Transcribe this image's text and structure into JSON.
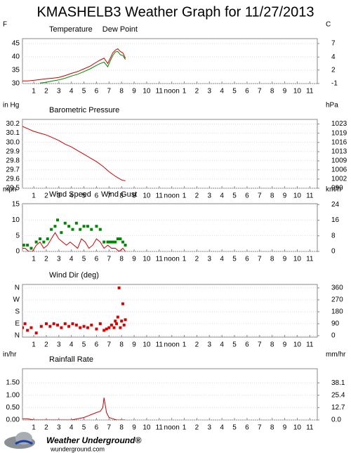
{
  "title": "KMASHELB3 Weather Graph for 11/27/2013",
  "chart_data": [
    {
      "type": "line",
      "ylabel": "F",
      "y2label": "C",
      "xlim": [
        0.1,
        23.6
      ],
      "xticks": [
        1,
        2,
        3,
        4,
        5,
        6,
        7,
        8,
        9,
        10,
        11,
        {
          "value": 12,
          "label": "noon"
        },
        {
          "value": 13,
          "label": "1"
        },
        {
          "value": 14,
          "label": "2"
        },
        {
          "value": 15,
          "label": "3"
        },
        {
          "value": 16,
          "label": "4"
        },
        {
          "value": 17,
          "label": "5"
        },
        {
          "value": 18,
          "label": "6"
        },
        {
          "value": 19,
          "label": "7"
        },
        {
          "value": 20,
          "label": "8"
        },
        {
          "value": 21,
          "label": "9"
        },
        {
          "value": 22,
          "label": "10"
        },
        {
          "value": 23,
          "label": "11"
        }
      ],
      "ylim": [
        30,
        46.8
      ],
      "yticks": [
        30,
        35,
        40,
        45
      ],
      "y2lim": [
        -1.11,
        8.22
      ],
      "y2ticks": [
        {
          "value": -1.1,
          "label": "-1"
        },
        {
          "value": 1.7,
          "label": "2"
        },
        {
          "value": 4.4,
          "label": "4"
        },
        {
          "value": 7.2,
          "label": "7"
        }
      ],
      "grid": true,
      "series": [
        {
          "name": "Temperature",
          "color": "#cc0000",
          "style": "line",
          "x": [
            0,
            0.5,
            1,
            1.5,
            2,
            2.5,
            3,
            3.5,
            4,
            4.5,
            5,
            5.5,
            6,
            6.3,
            6.6,
            6.9,
            7.1,
            7.3,
            7.5,
            7.7,
            7.9,
            8.1,
            8.3
          ],
          "values": [
            31,
            31,
            31.2,
            31.5,
            31.8,
            32,
            32.3,
            33,
            33.8,
            34.5,
            35.5,
            36.5,
            38,
            38.8,
            39.5,
            37.5,
            39.5,
            41.5,
            42.5,
            43,
            42,
            41.5,
            39.5
          ]
        },
        {
          "name": "Dew Point",
          "color": "#008800",
          "style": "line",
          "x": [
            0,
            0.5,
            1,
            1.5,
            2,
            2.5,
            3,
            3.5,
            4,
            4.5,
            5,
            5.5,
            6,
            6.3,
            6.6,
            6.9,
            7.1,
            7.3,
            7.5,
            7.7,
            7.9,
            8.1,
            8.3
          ],
          "values": [
            null,
            null,
            null,
            30.2,
            30.5,
            31,
            31.4,
            32,
            32.8,
            33.5,
            34.5,
            35.5,
            36.8,
            37.5,
            38,
            36.3,
            38.5,
            40.5,
            41.8,
            42,
            40.8,
            40.5,
            39
          ]
        }
      ]
    },
    {
      "type": "line",
      "ylabel": "in Hg",
      "y2label": "hPa",
      "xlim": [
        0.1,
        23.6
      ],
      "xticks": [
        1,
        2,
        3,
        4,
        5,
        6,
        7,
        8,
        9,
        10,
        11,
        {
          "value": 12,
          "label": "noon"
        },
        {
          "value": 13,
          "label": "1"
        },
        {
          "value": 14,
          "label": "2"
        },
        {
          "value": 15,
          "label": "3"
        },
        {
          "value": 16,
          "label": "4"
        },
        {
          "value": 17,
          "label": "5"
        },
        {
          "value": 18,
          "label": "6"
        },
        {
          "value": 19,
          "label": "7"
        },
        {
          "value": 20,
          "label": "8"
        },
        {
          "value": 21,
          "label": "9"
        },
        {
          "value": 22,
          "label": "10"
        },
        {
          "value": 23,
          "label": "11"
        }
      ],
      "ylim": [
        29.5,
        30.25
      ],
      "yticks": [
        29.5,
        29.6,
        29.7,
        29.8,
        29.9,
        {
          "value": 30,
          "label": "30.0"
        },
        30.1,
        30.2
      ],
      "y2lim": [
        999.0,
        1024.4
      ],
      "y2ticks": [
        {
          "value": 999.0,
          "label": "999"
        },
        {
          "value": 1002.4,
          "label": "1002"
        },
        {
          "value": 1005.8,
          "label": "1006"
        },
        {
          "value": 1009.1,
          "label": "1009"
        },
        {
          "value": 1012.5,
          "label": "1013"
        },
        {
          "value": 1015.9,
          "label": "1016"
        },
        {
          "value": 1019.3,
          "label": "1019"
        },
        {
          "value": 1022.7,
          "label": "1023"
        }
      ],
      "grid": true,
      "series": [
        {
          "name": "Barometric Pressure",
          "color": "#cc0000",
          "style": "line",
          "x": [
            0,
            0.5,
            1,
            1.5,
            2,
            2.5,
            3,
            3.5,
            4,
            4.5,
            5,
            5.5,
            6,
            6.5,
            7,
            7.5,
            8,
            8.3
          ],
          "values": [
            30.18,
            30.15,
            30.12,
            30.1,
            30.08,
            30.05,
            30.02,
            29.98,
            29.95,
            29.91,
            29.87,
            29.83,
            29.79,
            29.74,
            29.68,
            29.63,
            29.59,
            29.58
          ]
        }
      ]
    },
    {
      "type": "line",
      "ylabel": "mph",
      "y2label": "km/h",
      "xlim": [
        0.1,
        23.6
      ],
      "xticks": [
        1,
        2,
        3,
        4,
        5,
        6,
        7,
        8,
        9,
        10,
        11,
        {
          "value": 12,
          "label": "noon"
        },
        {
          "value": 13,
          "label": "1"
        },
        {
          "value": 14,
          "label": "2"
        },
        {
          "value": 15,
          "label": "3"
        },
        {
          "value": 16,
          "label": "4"
        },
        {
          "value": 17,
          "label": "5"
        },
        {
          "value": 18,
          "label": "6"
        },
        {
          "value": 19,
          "label": "7"
        },
        {
          "value": 20,
          "label": "8"
        },
        {
          "value": 21,
          "label": "9"
        },
        {
          "value": 22,
          "label": "10"
        },
        {
          "value": 23,
          "label": "11"
        }
      ],
      "ylim": [
        0,
        15.2
      ],
      "yticks": [
        0,
        5,
        10,
        15
      ],
      "y2lim": [
        0,
        24.46
      ],
      "y2ticks": [
        0,
        8,
        16,
        24
      ],
      "grid": true,
      "series": [
        {
          "name": "Wind Speed",
          "color": "#cc0000",
          "style": "line",
          "x": [
            0,
            0.3,
            0.6,
            0.9,
            1.2,
            1.5,
            1.8,
            2.1,
            2.4,
            2.7,
            3.0,
            3.3,
            3.6,
            3.9,
            4.2,
            4.5,
            4.8,
            5.1,
            5.4,
            5.7,
            6.0,
            6.3,
            6.6,
            6.9,
            7.2,
            7.5,
            7.8,
            8.1,
            8.3
          ],
          "values": [
            1,
            1,
            0,
            0,
            2,
            3,
            1,
            2,
            4,
            6,
            4,
            3,
            2,
            3,
            2,
            1,
            4,
            3,
            1,
            2,
            4,
            3,
            1,
            2,
            1,
            1,
            0,
            1,
            0
          ]
        },
        {
          "name": "Wind Gust",
          "color": "#008800",
          "style": "markers",
          "x": [
            0.2,
            0.5,
            0.8,
            1.2,
            1.5,
            1.8,
            2.1,
            2.4,
            2.7,
            2.9,
            3.2,
            3.5,
            3.8,
            4.1,
            4.4,
            4.7,
            5.0,
            5.3,
            5.6,
            6.0,
            6.3,
            6.6,
            6.9,
            7.1,
            7.3,
            7.5,
            7.7,
            7.9,
            8.1,
            8.3
          ],
          "values": [
            2,
            2,
            1,
            3,
            4,
            3,
            4,
            7,
            8,
            10,
            6,
            9,
            8,
            7,
            9,
            7,
            8,
            8,
            7,
            8,
            7,
            3,
            3,
            3,
            3,
            3,
            4,
            4,
            3,
            2
          ]
        }
      ]
    },
    {
      "type": "scatter",
      "y2label": null,
      "xlim": [
        0.1,
        23.6
      ],
      "xticks": [
        1,
        2,
        3,
        4,
        5,
        6,
        7,
        8,
        9,
        10,
        11,
        {
          "value": 12,
          "label": "noon"
        },
        {
          "value": 13,
          "label": "1"
        },
        {
          "value": 14,
          "label": "2"
        },
        {
          "value": 15,
          "label": "3"
        },
        {
          "value": 16,
          "label": "4"
        },
        {
          "value": 17,
          "label": "5"
        },
        {
          "value": 18,
          "label": "6"
        },
        {
          "value": 19,
          "label": "7"
        },
        {
          "value": 20,
          "label": "8"
        },
        {
          "value": 21,
          "label": "9"
        },
        {
          "value": 22,
          "label": "10"
        },
        {
          "value": 23,
          "label": "11"
        }
      ],
      "ylim": [
        -11,
        386
      ],
      "yticks": [
        {
          "value": 0,
          "label": "N"
        },
        {
          "value": 90,
          "label": "E"
        },
        {
          "value": 180,
          "label": "S"
        },
        {
          "value": 270,
          "label": "W"
        },
        {
          "value": 360,
          "label": "N"
        }
      ],
      "y2lim": [
        -11,
        386
      ],
      "y2ticks": [
        0,
        90,
        180,
        270,
        360
      ],
      "grid": true,
      "series": [
        {
          "name": "Wind Dir (deg)",
          "color": "#dd0000",
          "style": "markers",
          "x": [
            0.1,
            0.3,
            0.5,
            0.8,
            1.2,
            1.6,
            2.0,
            2.3,
            2.6,
            2.9,
            3.2,
            3.5,
            3.8,
            4.1,
            4.4,
            4.7,
            5.0,
            5.3,
            5.6,
            6.0,
            6.3,
            6.6,
            6.8,
            7.0,
            7.2,
            7.4,
            7.5,
            7.6,
            7.7,
            7.8,
            7.9,
            8.0,
            8.1,
            8.2,
            8.3
          ],
          "values": [
            60,
            90,
            40,
            60,
            20,
            70,
            90,
            70,
            90,
            80,
            60,
            90,
            70,
            90,
            80,
            60,
            70,
            60,
            80,
            50,
            90,
            40,
            50,
            60,
            80,
            60,
            110,
            90,
            140,
            360,
            60,
            110,
            240,
            80,
            120
          ]
        }
      ]
    },
    {
      "type": "line",
      "ylabel": "in/hr",
      "y2label": "mm/hr",
      "xlim": [
        0.1,
        23.6
      ],
      "xticks": [
        1,
        2,
        3,
        4,
        5,
        6,
        7,
        8,
        9,
        10,
        11,
        {
          "value": 12,
          "label": "noon"
        },
        {
          "value": 13,
          "label": "1"
        },
        {
          "value": 14,
          "label": "2"
        },
        {
          "value": 15,
          "label": "3"
        },
        {
          "value": 16,
          "label": "4"
        },
        {
          "value": 17,
          "label": "5"
        },
        {
          "value": 18,
          "label": "6"
        },
        {
          "value": 19,
          "label": "7"
        },
        {
          "value": 20,
          "label": "8"
        },
        {
          "value": 21,
          "label": "9"
        },
        {
          "value": 22,
          "label": "10"
        },
        {
          "value": 23,
          "label": "11"
        }
      ],
      "ylim": [
        0,
        2.07
      ],
      "yticks": [
        {
          "value": 0,
          "label": "0.00"
        },
        {
          "value": 0.5,
          "label": "0.50"
        },
        {
          "value": 1,
          "label": "1.00"
        },
        {
          "value": 1.5,
          "label": "1.50"
        }
      ],
      "y2lim": [
        0,
        52.6
      ],
      "y2ticks": [
        {
          "value": 0,
          "label": "0.0"
        },
        12.7,
        25.4,
        38.1
      ],
      "grid": true,
      "series": [
        {
          "name": "Rainfall Rate",
          "color": "#cc0000",
          "style": "line",
          "x": [
            0,
            0.5,
            1,
            1.5,
            2,
            3,
            4,
            5,
            5.5,
            6,
            6.3,
            6.5,
            6.6,
            6.7,
            6.8,
            7,
            7.3,
            7.6,
            8,
            8.3
          ],
          "values": [
            0.05,
            0.05,
            0,
            0,
            0,
            0,
            0,
            0.1,
            0.2,
            0.3,
            0.35,
            0.5,
            0.9,
            0.6,
            0.3,
            0.1,
            0.05,
            0,
            0,
            0
          ]
        }
      ]
    }
  ],
  "footer": {
    "brand": "Weather Underground®",
    "url": "wunderground.com"
  }
}
